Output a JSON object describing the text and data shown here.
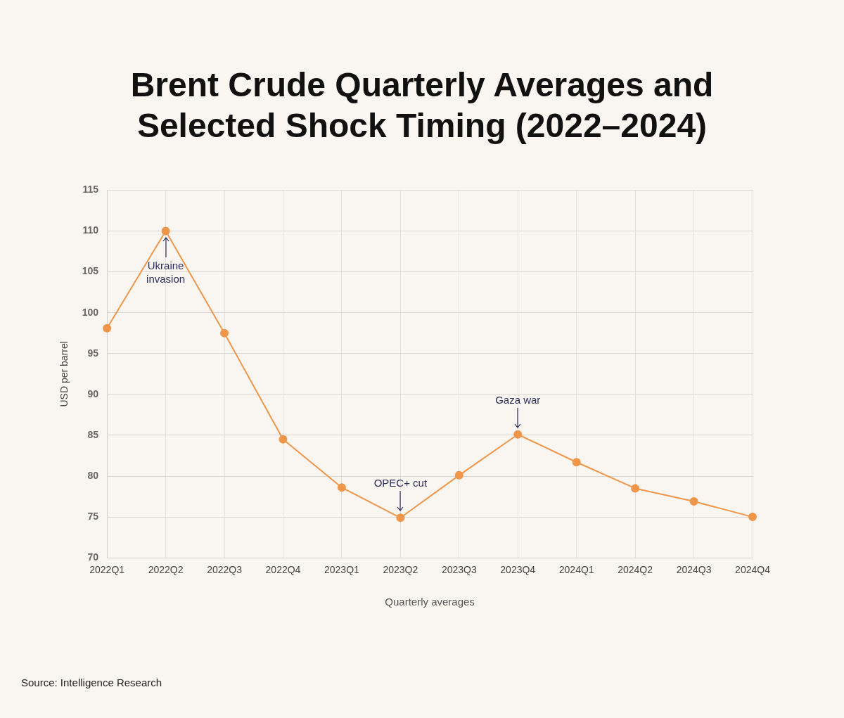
{
  "chart_data": {
    "type": "line",
    "title": "Brent Crude Quarterly Averages and Selected Shock Timing (2022–2024)",
    "xlabel": "Quarterly averages",
    "ylabel": "USD per barrel",
    "categories": [
      "2022Q1",
      "2022Q2",
      "2022Q3",
      "2022Q4",
      "2023Q1",
      "2023Q2",
      "2023Q3",
      "2023Q4",
      "2024Q1",
      "2024Q2",
      "2024Q3",
      "2024Q4"
    ],
    "series": [
      {
        "color": "#f0964a",
        "values": [
          98.1,
          110.0,
          97.5,
          84.5,
          78.6,
          74.9,
          80.1,
          85.1,
          81.7,
          78.5,
          76.9,
          75.0
        ]
      }
    ],
    "ylim": [
      70,
      115
    ],
    "yticks": [
      70,
      75,
      80,
      85,
      90,
      95,
      100,
      105,
      110,
      115
    ],
    "grid": true,
    "legend": false,
    "marker": "circle",
    "line_style": "solid",
    "annotations": [
      {
        "text": "Ukraine invasion",
        "x": "2022Q2",
        "y": 110.0
      },
      {
        "text": "OPEC+ cut",
        "x": "2023Q2",
        "y": 74.9
      },
      {
        "text": "Gaza war",
        "x": "2023Q4",
        "y": 85.1
      },
      "Source: Intelligence Research"
    ]
  }
}
